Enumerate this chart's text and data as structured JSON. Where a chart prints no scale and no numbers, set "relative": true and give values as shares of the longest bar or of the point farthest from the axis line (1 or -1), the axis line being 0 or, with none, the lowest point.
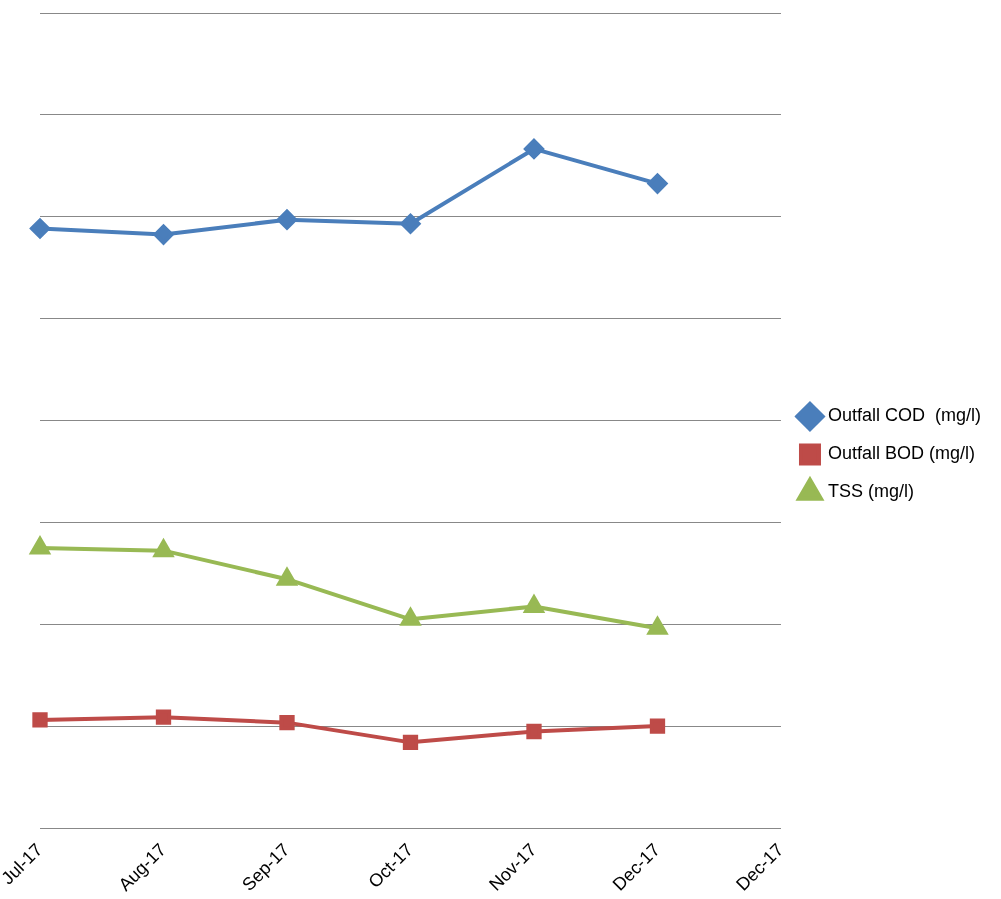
{
  "chart_data": {
    "type": "line",
    "relative": true,
    "categories": [
      "Jul-17",
      "Aug-17",
      "Sep-17",
      "Oct-17",
      "Nov-17",
      "Dec-17",
      "Dec-17"
    ],
    "series": [
      {
        "name": "Outfall COD  (mg/l)",
        "color": "#4a7ebb",
        "marker": "diamond",
        "values": [
          0.883,
          0.874,
          0.896,
          0.89,
          1,
          0.949,
          null
        ]
      },
      {
        "name": "Outfall BOD (mg/l)",
        "color": "#be4b48",
        "marker": "square",
        "values": [
          0.16,
          0.164,
          0.156,
          0.127,
          0.143,
          0.151,
          null
        ]
      },
      {
        "name": "TSS (mg/l)",
        "color": "#98b954",
        "marker": "triangle",
        "values": [
          0.413,
          0.409,
          0.367,
          0.308,
          0.327,
          0.295,
          null
        ]
      }
    ],
    "grid": "y",
    "legend": "right",
    "line_style": "solid"
  }
}
